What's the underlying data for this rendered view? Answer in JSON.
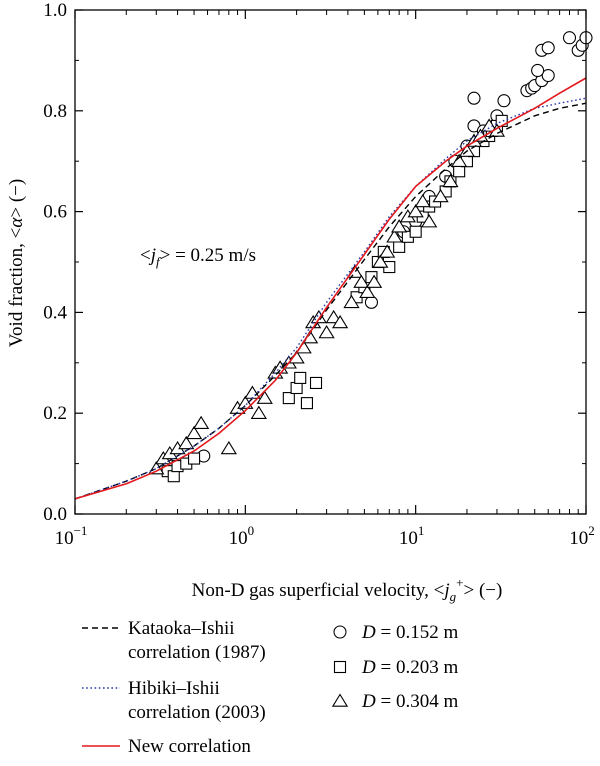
{
  "chart_data": {
    "type": "scatter",
    "x_scale": "log",
    "xlim": [
      0.1,
      100
    ],
    "ylim": [
      0.0,
      1.0
    ],
    "x_ticks": [
      0.1,
      1,
      10,
      100
    ],
    "x_tick_labels": [
      {
        "base": "10",
        "exp": "−1"
      },
      {
        "base": "10",
        "exp": "0"
      },
      {
        "base": "10",
        "exp": "1"
      },
      {
        "base": "10",
        "exp": "2"
      }
    ],
    "y_ticks": [
      0.0,
      0.2,
      0.4,
      0.6,
      0.8,
      1.0
    ],
    "y_tick_labels": [
      "0.0",
      "0.2",
      "0.4",
      "0.6",
      "0.8",
      "1.0"
    ],
    "xlabel": {
      "pre": "Non-D gas superficial velocity, <",
      "var": "j",
      "sub": "g",
      "sup": "+",
      "post": "> (−)"
    },
    "ylabel": {
      "pre": "Void fraction, <",
      "var": "α",
      "post": "> (−)"
    },
    "annotation": {
      "pre": "<",
      "var": "j",
      "sub": "f",
      "post": "> = 0.25 m/s",
      "x": 1.2,
      "y": 0.52
    },
    "grid": false,
    "legend_placement": "bottom",
    "series": [
      {
        "label_lines": [
          "Kataoka–Ishii",
          "correlation (1987)"
        ],
        "kind": "line",
        "style": "dashed",
        "color": "#000000",
        "x": [
          0.1,
          0.2,
          0.3,
          0.5,
          0.7,
          1.0,
          1.5,
          2,
          3,
          5,
          7,
          10,
          15,
          20,
          30,
          50,
          70,
          100
        ],
        "y": [
          0.03,
          0.065,
          0.09,
          0.135,
          0.17,
          0.215,
          0.275,
          0.32,
          0.405,
          0.505,
          0.57,
          0.63,
          0.685,
          0.72,
          0.755,
          0.79,
          0.805,
          0.815
        ]
      },
      {
        "label_lines": [
          "Hibiki–Ishii",
          "correlation (2003)"
        ],
        "kind": "line",
        "style": "dotted",
        "color": "#2b3aa6",
        "x": [
          0.1,
          0.2,
          0.3,
          0.5,
          0.7,
          1.0,
          1.5,
          2,
          3,
          5,
          7,
          10,
          15,
          20,
          30,
          50,
          70,
          100
        ],
        "y": [
          0.03,
          0.065,
          0.09,
          0.135,
          0.17,
          0.215,
          0.28,
          0.33,
          0.42,
          0.52,
          0.59,
          0.65,
          0.705,
          0.74,
          0.775,
          0.805,
          0.815,
          0.825
        ]
      },
      {
        "label_lines": [
          "New correlation"
        ],
        "kind": "line",
        "style": "solid",
        "color": "#e3171c",
        "x": [
          0.1,
          0.2,
          0.3,
          0.5,
          0.7,
          1.0,
          1.5,
          2,
          3,
          5,
          7,
          10,
          15,
          20,
          30,
          50,
          70,
          100
        ],
        "y": [
          0.03,
          0.06,
          0.085,
          0.125,
          0.16,
          0.205,
          0.265,
          0.32,
          0.41,
          0.515,
          0.585,
          0.65,
          0.7,
          0.73,
          0.765,
          0.805,
          0.835,
          0.865
        ]
      },
      {
        "label": {
          "var": "D",
          "post": " = 0.152 m"
        },
        "kind": "scatter",
        "marker": "circle",
        "points": [
          [
            0.57,
            0.115
          ],
          [
            5.5,
            0.42
          ],
          [
            8.5,
            0.56
          ],
          [
            10,
            0.58
          ],
          [
            12,
            0.63
          ],
          [
            15,
            0.67
          ],
          [
            17,
            0.7
          ],
          [
            20,
            0.73
          ],
          [
            22,
            0.77
          ],
          [
            25,
            0.76
          ],
          [
            30,
            0.79
          ],
          [
            33,
            0.82
          ],
          [
            22,
            0.825
          ],
          [
            45,
            0.84
          ],
          [
            48,
            0.845
          ],
          [
            50,
            0.85
          ],
          [
            55,
            0.86
          ],
          [
            60,
            0.87
          ],
          [
            52,
            0.88
          ],
          [
            55,
            0.92
          ],
          [
            60,
            0.925
          ],
          [
            80,
            0.945
          ],
          [
            90,
            0.92
          ],
          [
            95,
            0.93
          ],
          [
            100,
            0.945
          ]
        ]
      },
      {
        "label": {
          "var": "D",
          "post": " = 0.203 m"
        },
        "kind": "scatter",
        "marker": "square",
        "points": [
          [
            0.35,
            0.085
          ],
          [
            0.38,
            0.075
          ],
          [
            0.4,
            0.095
          ],
          [
            0.45,
            0.1
          ],
          [
            0.5,
            0.11
          ],
          [
            1.8,
            0.23
          ],
          [
            2.0,
            0.25
          ],
          [
            2.1,
            0.27
          ],
          [
            2.3,
            0.22
          ],
          [
            2.6,
            0.26
          ],
          [
            4.5,
            0.43
          ],
          [
            5,
            0.45
          ],
          [
            5.5,
            0.47
          ],
          [
            6,
            0.5
          ],
          [
            6.5,
            0.52
          ],
          [
            7,
            0.49
          ],
          [
            8,
            0.53
          ],
          [
            9,
            0.55
          ],
          [
            10,
            0.56
          ],
          [
            11,
            0.59
          ],
          [
            12,
            0.61
          ],
          [
            13,
            0.62
          ],
          [
            15,
            0.64
          ],
          [
            16,
            0.66
          ],
          [
            18,
            0.68
          ],
          [
            20,
            0.7
          ],
          [
            22,
            0.72
          ],
          [
            25,
            0.74
          ],
          [
            27,
            0.75
          ],
          [
            28,
            0.76
          ],
          [
            30,
            0.77
          ],
          [
            32,
            0.78
          ]
        ]
      },
      {
        "label": {
          "var": "D",
          "post": " = 0.304 m"
        },
        "kind": "scatter",
        "marker": "triangle",
        "points": [
          [
            0.3,
            0.09
          ],
          [
            0.33,
            0.11
          ],
          [
            0.36,
            0.12
          ],
          [
            0.4,
            0.13
          ],
          [
            0.45,
            0.14
          ],
          [
            0.5,
            0.16
          ],
          [
            0.55,
            0.18
          ],
          [
            0.8,
            0.13
          ],
          [
            0.9,
            0.21
          ],
          [
            1.0,
            0.22
          ],
          [
            1.1,
            0.24
          ],
          [
            1.2,
            0.2
          ],
          [
            1.3,
            0.23
          ],
          [
            1.5,
            0.28
          ],
          [
            1.6,
            0.29
          ],
          [
            1.8,
            0.3
          ],
          [
            2.0,
            0.31
          ],
          [
            2.2,
            0.33
          ],
          [
            2.4,
            0.35
          ],
          [
            2.5,
            0.38
          ],
          [
            2.7,
            0.39
          ],
          [
            3.0,
            0.36
          ],
          [
            3.3,
            0.39
          ],
          [
            3.6,
            0.38
          ],
          [
            4.2,
            0.42
          ],
          [
            4.4,
            0.48
          ],
          [
            4.8,
            0.46
          ],
          [
            5.2,
            0.44
          ],
          [
            5.7,
            0.46
          ],
          [
            6.2,
            0.5
          ],
          [
            6.8,
            0.52
          ],
          [
            7.5,
            0.55
          ],
          [
            8,
            0.57
          ],
          [
            9,
            0.59
          ],
          [
            10,
            0.6
          ],
          [
            11,
            0.62
          ],
          [
            12,
            0.58
          ],
          [
            14,
            0.63
          ],
          [
            16,
            0.66
          ],
          [
            18,
            0.7
          ],
          [
            20,
            0.72
          ],
          [
            22,
            0.74
          ],
          [
            24,
            0.75
          ],
          [
            27,
            0.77
          ],
          [
            30,
            0.76
          ]
        ]
      }
    ]
  }
}
